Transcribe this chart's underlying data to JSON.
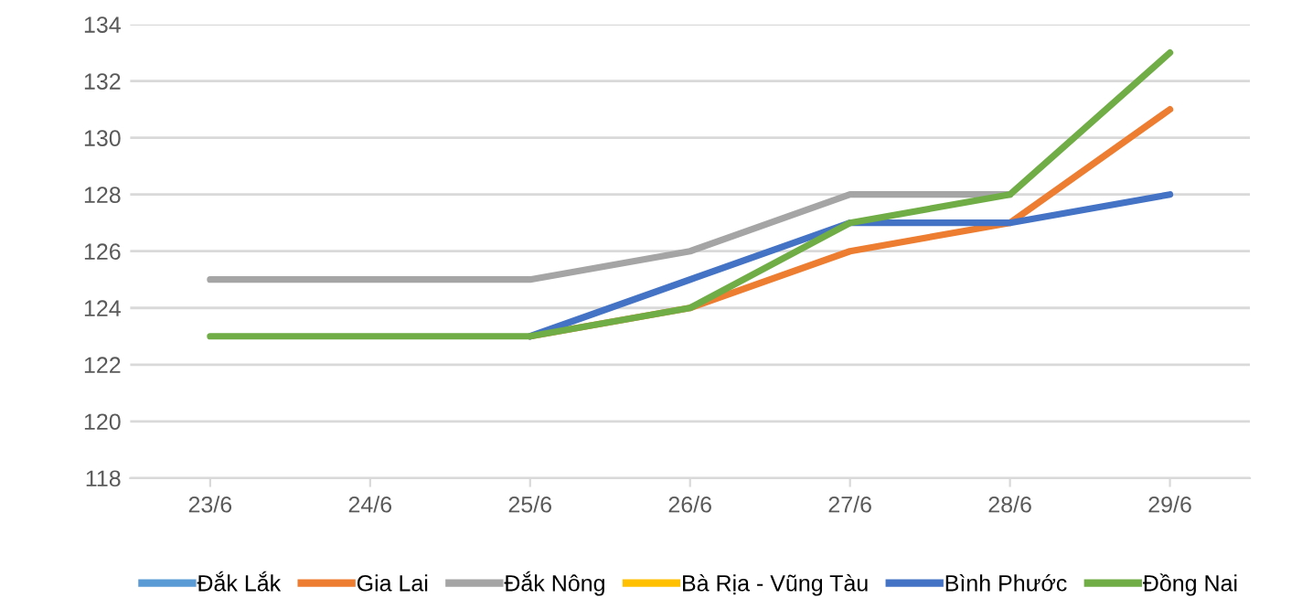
{
  "chart_data": {
    "type": "line",
    "categories": [
      "23/6",
      "24/6",
      "25/6",
      "26/6",
      "27/6",
      "28/6",
      "29/6"
    ],
    "series": [
      {
        "name": "Đắk Lắk",
        "color": "#5b9bd5",
        "values": [
          null,
          null,
          null,
          null,
          null,
          null,
          null
        ]
      },
      {
        "name": "Gia Lai",
        "color": "#ed7d31",
        "values": [
          null,
          null,
          123,
          124,
          126,
          127,
          131
        ]
      },
      {
        "name": "Đắk Nông",
        "color": "#a5a5a5",
        "values": [
          125,
          125,
          125,
          126,
          128,
          128,
          null
        ]
      },
      {
        "name": "Bà Rịa - Vũng Tàu",
        "color": "#ffc000",
        "values": [
          null,
          null,
          null,
          null,
          null,
          null,
          null
        ]
      },
      {
        "name": "Bình Phước",
        "color": "#4472c4",
        "values": [
          null,
          null,
          123,
          125,
          127,
          127,
          128
        ]
      },
      {
        "name": "Đồng Nai",
        "color": "#70ad47",
        "values": [
          123,
          123,
          123,
          124,
          127,
          128,
          133
        ]
      }
    ],
    "ylim": [
      118,
      134
    ],
    "yticks": [
      118,
      120,
      122,
      124,
      126,
      128,
      130,
      132,
      134
    ],
    "grid": "y",
    "legend": "bottom",
    "marker": "none",
    "line_style": "solid"
  }
}
